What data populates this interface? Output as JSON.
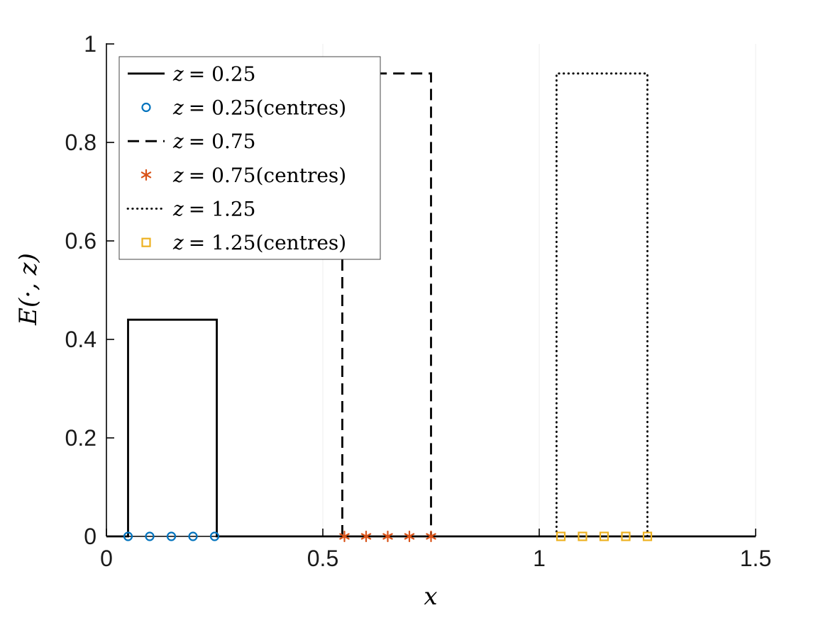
{
  "figure": {
    "background": "#ffffff"
  },
  "chart_data": {
    "type": "line",
    "title": "",
    "xlabel": "x",
    "ylabel": "E(·, z)",
    "xlim": [
      0,
      1.5
    ],
    "ylim": [
      0,
      1
    ],
    "xtick_labels": [
      "0",
      "0.5",
      "1",
      "1.5"
    ],
    "ytick_labels": [
      "0",
      "0.2",
      "0.4",
      "0.6",
      "0.8",
      "1"
    ],
    "grid": "faint-vertical",
    "grid_color": "#ececec",
    "axis_color": "#000000",
    "legend_position": "top-left",
    "series": [
      {
        "label_var": "z",
        "label_rest": "= 0.25",
        "label_note": "",
        "kind": "step",
        "line_style": "solid",
        "color": "#000000",
        "support": [
          0.05,
          0.255
        ],
        "height": 0.44,
        "baseline": [
          0,
          1.5
        ]
      },
      {
        "label_var": "z",
        "label_rest": "= 0.25",
        "label_note": "(centres)",
        "kind": "markers",
        "marker": "circle",
        "color": "#0072BD",
        "x": [
          0.05,
          0.1,
          0.15,
          0.2,
          0.25
        ],
        "y": [
          0,
          0,
          0,
          0,
          0
        ]
      },
      {
        "label_var": "z",
        "label_rest": "= 0.75",
        "label_note": "",
        "kind": "step",
        "line_style": "dashed",
        "color": "#000000",
        "support": [
          0.545,
          0.75
        ],
        "height": 0.94
      },
      {
        "label_var": "z",
        "label_rest": "= 0.75",
        "label_note": "(centres)",
        "kind": "markers",
        "marker": "asterisk",
        "color": "#D95319",
        "x": [
          0.55,
          0.6,
          0.65,
          0.7,
          0.75
        ],
        "y": [
          0,
          0,
          0,
          0,
          0
        ]
      },
      {
        "label_var": "z",
        "label_rest": "= 1.25",
        "label_note": "",
        "kind": "step",
        "line_style": "dotted",
        "color": "#000000",
        "support": [
          1.04,
          1.25
        ],
        "height": 0.94
      },
      {
        "label_var": "z",
        "label_rest": "= 1.25",
        "label_note": "(centres)",
        "kind": "markers",
        "marker": "square",
        "color": "#EDB120",
        "x": [
          1.05,
          1.1,
          1.15,
          1.2,
          1.25
        ],
        "y": [
          0,
          0,
          0,
          0,
          0
        ]
      }
    ]
  }
}
